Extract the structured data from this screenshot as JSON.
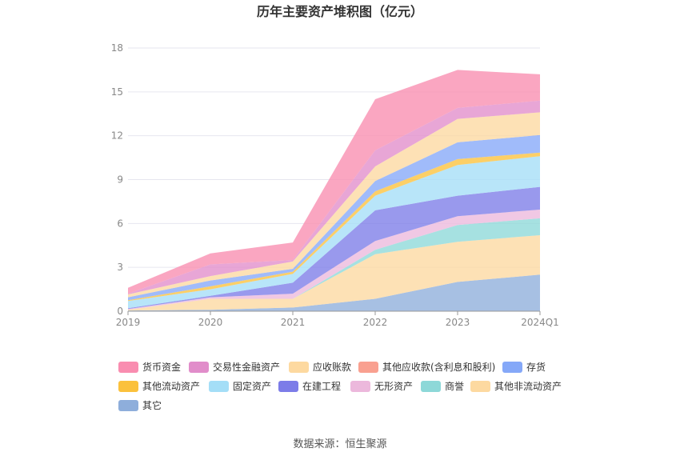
{
  "chart_data": {
    "type": "area",
    "title": "历年主要资产堆积图（亿元）",
    "categories": [
      "2019",
      "2020",
      "2021",
      "2022",
      "2023",
      "2024Q1"
    ],
    "yticks": [
      "0",
      "3",
      "6",
      "9",
      "12",
      "15",
      "18"
    ],
    "ylim": [
      0,
      18
    ],
    "stacked": true,
    "grid": true,
    "legend_position": "bottom",
    "series": [
      {
        "name": "其它",
        "color": "#8eaedb",
        "values": [
          0.05,
          0.1,
          0.25,
          0.85,
          2.0,
          2.5
        ]
      },
      {
        "name": "其他非流动资产",
        "color": "#fdd9a0",
        "values": [
          0.05,
          0.75,
          0.6,
          3.05,
          2.75,
          2.7
        ]
      },
      {
        "name": "商誉",
        "color": "#8dd8d8",
        "values": [
          0,
          0,
          0,
          0.3,
          1.15,
          1.15
        ]
      },
      {
        "name": "无形资产",
        "color": "#ecb8dc",
        "values": [
          0.05,
          0.1,
          0.35,
          0.6,
          0.6,
          0.6
        ]
      },
      {
        "name": "在建工程",
        "color": "#7c7ce8",
        "values": [
          0.05,
          0.1,
          0.75,
          2.1,
          1.4,
          1.55
        ]
      },
      {
        "name": "固定资产",
        "color": "#a4def7",
        "values": [
          0.5,
          0.45,
          0.6,
          1.0,
          2.1,
          2.1
        ]
      },
      {
        "name": "其他流动资产",
        "color": "#fbc13c",
        "values": [
          0.05,
          0.2,
          0.15,
          0.3,
          0.4,
          0.25
        ]
      },
      {
        "name": "存货",
        "color": "#85a8f8",
        "values": [
          0.2,
          0.4,
          0.2,
          0.7,
          1.15,
          1.2
        ]
      },
      {
        "name": "其他应收款(含利息和股利)",
        "color": "#f9a090",
        "values": [
          0,
          0,
          0,
          0,
          0,
          0
        ]
      },
      {
        "name": "应收账款",
        "color": "#fdd9a0",
        "values": [
          0.2,
          0.3,
          0.5,
          1.0,
          1.6,
          1.55
        ]
      },
      {
        "name": "交易性金融资产",
        "color": "#e18dca",
        "values": [
          0.05,
          0.8,
          0.1,
          1.1,
          0.75,
          0.8
        ]
      },
      {
        "name": "货币资金",
        "color": "#f98db0",
        "values": [
          0.4,
          0.75,
          1.2,
          3.5,
          2.6,
          1.8
        ]
      }
    ],
    "legend_order": [
      "货币资金",
      "交易性金融资产",
      "应收账款",
      "其他应收款(含利息和股利)",
      "存货",
      "其他流动资产",
      "固定资产",
      "在建工程",
      "无形资产",
      "商誉",
      "其他非流动资产",
      "其它"
    ],
    "source": "数据来源：恒生聚源"
  }
}
